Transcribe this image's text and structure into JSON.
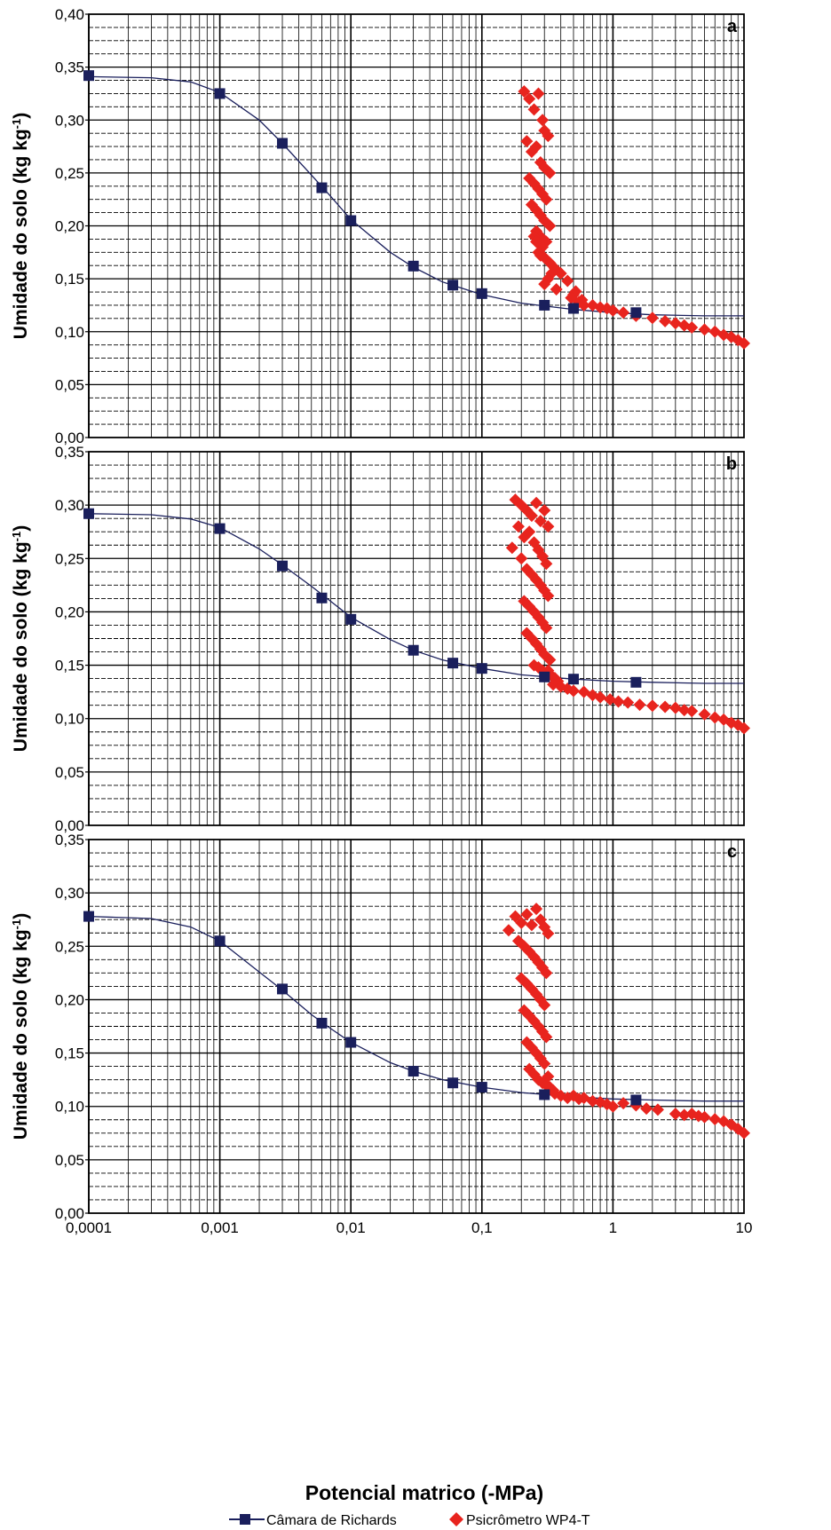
{
  "colors": {
    "richards": "#1a1f5c",
    "wp4t": "#e8241e",
    "grid": "#000000"
  },
  "x_axis_label": "Potencial matrico (-MPa)",
  "legend": {
    "placement": "bottom-center",
    "items": [
      {
        "label": "Câmara de Richards",
        "marker": "square",
        "color": "#1a1f5c"
      },
      {
        "label": "Psicrômetro WP4-T",
        "marker": "diamond",
        "color": "#e8241e"
      }
    ]
  },
  "chart_data": [
    {
      "type": "scatter",
      "panel_label": "a",
      "xscale": "log",
      "xlim": [
        0.0001,
        10
      ],
      "ylim": [
        0,
        0.4
      ],
      "xticks": [
        "0,0001",
        "0,001",
        "0,01",
        "0,1",
        "1",
        "10"
      ],
      "yticks": [
        "0,00",
        "0,05",
        "0,10",
        "0,15",
        "0,20",
        "0,25",
        "0,30",
        "0,35",
        "0,40"
      ],
      "ylabel": "Umidade do solo (kg kg-1)",
      "grid": true,
      "series": [
        {
          "name": "Câmara de Richards",
          "marker": "square",
          "x": [
            0.0001,
            0.001,
            0.003,
            0.006,
            0.01,
            0.03,
            0.06,
            0.1,
            0.3,
            0.5,
            1.5
          ],
          "y": [
            0.342,
            0.325,
            0.278,
            0.236,
            0.205,
            0.162,
            0.144,
            0.136,
            0.125,
            0.122,
            0.118
          ]
        },
        {
          "name": "Psicrômetro WP4-T",
          "marker": "diamond",
          "x": [
            0.21,
            0.23,
            0.25,
            0.27,
            0.29,
            0.3,
            0.32,
            0.22,
            0.24,
            0.26,
            0.28,
            0.3,
            0.33,
            0.23,
            0.25,
            0.27,
            0.29,
            0.31,
            0.24,
            0.26,
            0.28,
            0.3,
            0.33,
            0.26,
            0.28,
            0.31,
            0.29,
            0.27,
            0.25,
            0.3,
            0.33,
            0.36,
            0.34,
            0.32,
            0.3,
            0.28,
            0.26,
            0.37,
            0.4,
            0.45,
            0.5,
            0.55,
            0.6,
            0.52,
            0.48,
            0.58,
            0.7,
            0.8,
            0.9,
            1.0,
            1.2,
            1.5,
            2.0,
            2.5,
            3.0,
            3.5,
            4.0,
            5.0,
            6.0,
            7.0,
            8.0,
            9.0,
            10.0
          ],
          "y": [
            0.327,
            0.32,
            0.31,
            0.325,
            0.3,
            0.29,
            0.285,
            0.28,
            0.27,
            0.275,
            0.26,
            0.255,
            0.25,
            0.245,
            0.24,
            0.235,
            0.23,
            0.225,
            0.22,
            0.215,
            0.21,
            0.205,
            0.2,
            0.195,
            0.19,
            0.185,
            0.18,
            0.175,
            0.19,
            0.17,
            0.165,
            0.16,
            0.155,
            0.15,
            0.145,
            0.172,
            0.185,
            0.14,
            0.155,
            0.148,
            0.135,
            0.128,
            0.125,
            0.138,
            0.132,
            0.13,
            0.125,
            0.123,
            0.122,
            0.12,
            0.118,
            0.115,
            0.113,
            0.11,
            0.108,
            0.106,
            0.104,
            0.102,
            0.1,
            0.097,
            0.095,
            0.092,
            0.089
          ]
        },
        {
          "name": "fit",
          "type": "line",
          "x": [
            0.0001,
            0.0003,
            0.0006,
            0.001,
            0.002,
            0.003,
            0.005,
            0.007,
            0.01,
            0.02,
            0.03,
            0.05,
            0.1,
            0.2,
            0.5,
            1,
            2,
            5,
            10
          ],
          "y": [
            0.341,
            0.34,
            0.336,
            0.326,
            0.3,
            0.278,
            0.248,
            0.228,
            0.206,
            0.175,
            0.161,
            0.147,
            0.135,
            0.127,
            0.121,
            0.118,
            0.116,
            0.115,
            0.115
          ]
        }
      ]
    },
    {
      "type": "scatter",
      "panel_label": "b",
      "xscale": "log",
      "xlim": [
        0.0001,
        10
      ],
      "ylim": [
        0,
        0.35
      ],
      "xticks": [
        "0,0001",
        "0,001",
        "0,01",
        "0,1",
        "1",
        "10"
      ],
      "yticks": [
        "0,00",
        "0,05",
        "0,10",
        "0,15",
        "0,20",
        "0,25",
        "0,30",
        "0,35"
      ],
      "ylabel": "Umidade do solo (kg kg-1)",
      "grid": true,
      "series": [
        {
          "name": "Câmara de Richards",
          "marker": "square",
          "x": [
            0.0001,
            0.001,
            0.003,
            0.006,
            0.01,
            0.03,
            0.06,
            0.1,
            0.3,
            0.5,
            1.5
          ],
          "y": [
            0.292,
            0.278,
            0.243,
            0.213,
            0.193,
            0.164,
            0.152,
            0.147,
            0.139,
            0.137,
            0.134
          ]
        },
        {
          "name": "Psicrômetro WP4-T",
          "marker": "diamond",
          "x": [
            0.17,
            0.18,
            0.2,
            0.22,
            0.24,
            0.26,
            0.28,
            0.3,
            0.32,
            0.19,
            0.21,
            0.23,
            0.25,
            0.27,
            0.29,
            0.31,
            0.2,
            0.22,
            0.24,
            0.26,
            0.28,
            0.3,
            0.32,
            0.21,
            0.23,
            0.25,
            0.27,
            0.29,
            0.31,
            0.22,
            0.24,
            0.26,
            0.28,
            0.3,
            0.33,
            0.25,
            0.27,
            0.29,
            0.31,
            0.34,
            0.36,
            0.38,
            0.32,
            0.35,
            0.4,
            0.45,
            0.5,
            0.6,
            0.7,
            0.8,
            0.95,
            1.1,
            1.3,
            1.6,
            2.0,
            2.5,
            3.0,
            3.5,
            4.0,
            5.0,
            6.0,
            7.0,
            8.0,
            9.0,
            10.0
          ],
          "y": [
            0.26,
            0.305,
            0.3,
            0.295,
            0.29,
            0.302,
            0.285,
            0.295,
            0.28,
            0.28,
            0.27,
            0.275,
            0.265,
            0.258,
            0.252,
            0.245,
            0.25,
            0.24,
            0.235,
            0.23,
            0.225,
            0.22,
            0.215,
            0.21,
            0.205,
            0.2,
            0.195,
            0.19,
            0.185,
            0.18,
            0.175,
            0.17,
            0.165,
            0.16,
            0.155,
            0.15,
            0.148,
            0.145,
            0.142,
            0.14,
            0.138,
            0.135,
            0.145,
            0.132,
            0.13,
            0.128,
            0.126,
            0.125,
            0.122,
            0.12,
            0.118,
            0.116,
            0.115,
            0.113,
            0.112,
            0.111,
            0.11,
            0.108,
            0.107,
            0.104,
            0.101,
            0.099,
            0.096,
            0.094,
            0.091
          ]
        },
        {
          "name": "fit",
          "type": "line",
          "x": [
            0.0001,
            0.0003,
            0.0006,
            0.001,
            0.002,
            0.003,
            0.005,
            0.007,
            0.01,
            0.02,
            0.03,
            0.05,
            0.1,
            0.2,
            0.5,
            1,
            2,
            5,
            10
          ],
          "y": [
            0.292,
            0.291,
            0.287,
            0.279,
            0.259,
            0.244,
            0.224,
            0.21,
            0.195,
            0.174,
            0.164,
            0.155,
            0.147,
            0.141,
            0.137,
            0.135,
            0.134,
            0.133,
            0.133
          ]
        }
      ]
    },
    {
      "type": "scatter",
      "panel_label": "c",
      "xscale": "log",
      "xlim": [
        0.0001,
        10
      ],
      "ylim": [
        0,
        0.35
      ],
      "xticks": [
        "0,0001",
        "0,001",
        "0,01",
        "0,1",
        "1",
        "10"
      ],
      "yticks": [
        "0,00",
        "0,05",
        "0,10",
        "0,15",
        "0,20",
        "0,25",
        "0,30",
        "0,35"
      ],
      "ylabel": "Umidade do solo (kg kg-1)",
      "xlabel": "Potencial matrico (-MPa)",
      "grid": true,
      "series": [
        {
          "name": "Câmara de Richards",
          "marker": "square",
          "x": [
            0.0001,
            0.001,
            0.003,
            0.006,
            0.01,
            0.03,
            0.06,
            0.1,
            0.3,
            1.5
          ],
          "y": [
            0.278,
            0.255,
            0.21,
            0.178,
            0.16,
            0.133,
            0.122,
            0.118,
            0.111,
            0.106
          ]
        },
        {
          "name": "Psicrômetro WP4-T",
          "marker": "diamond",
          "x": [
            0.16,
            0.18,
            0.2,
            0.22,
            0.24,
            0.26,
            0.28,
            0.3,
            0.32,
            0.19,
            0.21,
            0.23,
            0.25,
            0.27,
            0.29,
            0.31,
            0.2,
            0.22,
            0.24,
            0.26,
            0.28,
            0.3,
            0.21,
            0.23,
            0.25,
            0.27,
            0.29,
            0.31,
            0.22,
            0.24,
            0.26,
            0.28,
            0.3,
            0.23,
            0.25,
            0.27,
            0.29,
            0.31,
            0.33,
            0.35,
            0.32,
            0.36,
            0.4,
            0.45,
            0.5,
            0.55,
            0.6,
            0.7,
            0.8,
            0.9,
            1.0,
            1.2,
            1.5,
            1.8,
            2.2,
            3.0,
            3.5,
            4.0,
            4.5,
            5.0,
            6.0,
            7.0,
            8.0,
            9.0,
            10.0
          ],
          "y": [
            0.265,
            0.278,
            0.272,
            0.28,
            0.27,
            0.285,
            0.275,
            0.268,
            0.262,
            0.255,
            0.25,
            0.245,
            0.24,
            0.235,
            0.23,
            0.225,
            0.22,
            0.215,
            0.21,
            0.205,
            0.2,
            0.195,
            0.19,
            0.185,
            0.18,
            0.175,
            0.17,
            0.165,
            0.16,
            0.155,
            0.15,
            0.145,
            0.14,
            0.135,
            0.13,
            0.125,
            0.122,
            0.12,
            0.118,
            0.115,
            0.128,
            0.112,
            0.11,
            0.108,
            0.11,
            0.107,
            0.108,
            0.105,
            0.104,
            0.102,
            0.1,
            0.103,
            0.101,
            0.098,
            0.097,
            0.093,
            0.092,
            0.093,
            0.091,
            0.09,
            0.088,
            0.086,
            0.083,
            0.079,
            0.075
          ]
        },
        {
          "name": "fit",
          "type": "line",
          "x": [
            0.0001,
            0.0003,
            0.0006,
            0.001,
            0.002,
            0.003,
            0.005,
            0.007,
            0.01,
            0.02,
            0.03,
            0.05,
            0.1,
            0.2,
            0.5,
            1,
            2,
            5,
            10
          ],
          "y": [
            0.278,
            0.276,
            0.268,
            0.255,
            0.226,
            0.209,
            0.186,
            0.173,
            0.16,
            0.141,
            0.133,
            0.125,
            0.118,
            0.113,
            0.109,
            0.107,
            0.106,
            0.105,
            0.105
          ]
        }
      ]
    }
  ]
}
